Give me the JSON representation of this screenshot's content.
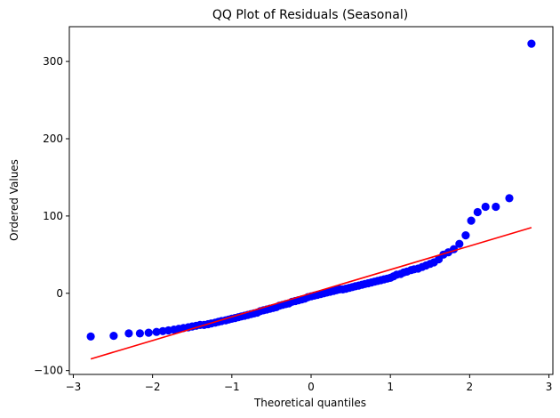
{
  "chart_data": {
    "type": "scatter",
    "title": "QQ Plot of Residuals (Seasonal)",
    "xlabel": "Theoretical quantiles",
    "ylabel": "Ordered Values",
    "xlim": [
      -3.05,
      3.05
    ],
    "ylim": [
      -105,
      345
    ],
    "xticks": [
      -3,
      -2,
      -1,
      0,
      1,
      2,
      3
    ],
    "yticks": [
      -100,
      0,
      100,
      200,
      300
    ],
    "xtick_labels": [
      "−3",
      "−2",
      "−1",
      "0",
      "1",
      "2",
      "3"
    ],
    "ytick_labels": [
      "−100",
      "0",
      "100",
      "200",
      "300"
    ],
    "grid": false,
    "legend": "none",
    "series": [
      {
        "kind": "scatter",
        "color": "#0000ff",
        "points": [
          [
            -2.78,
            -56
          ],
          [
            -2.49,
            -55
          ],
          [
            -2.3,
            -52
          ],
          [
            -2.16,
            -52
          ],
          [
            -2.05,
            -51
          ],
          [
            -1.95,
            -50
          ],
          [
            -1.87,
            -49
          ],
          [
            -1.8,
            -48
          ],
          [
            -1.73,
            -47
          ],
          [
            -1.67,
            -46
          ],
          [
            -1.61,
            -45
          ],
          [
            -1.55,
            -44
          ],
          [
            -1.5,
            -43
          ],
          [
            -1.45,
            -42
          ],
          [
            -1.4,
            -41
          ],
          [
            -1.35,
            -41
          ],
          [
            -1.3,
            -40
          ],
          [
            -1.26,
            -39
          ],
          [
            -1.21,
            -38
          ],
          [
            -1.17,
            -37
          ],
          [
            -1.13,
            -36
          ],
          [
            -1.08,
            -35
          ],
          [
            -1.04,
            -34
          ],
          [
            -1.0,
            -33
          ],
          [
            -0.96,
            -32
          ],
          [
            -0.92,
            -31
          ],
          [
            -0.88,
            -30
          ],
          [
            -0.84,
            -29
          ],
          [
            -0.8,
            -28
          ],
          [
            -0.76,
            -27
          ],
          [
            -0.72,
            -26
          ],
          [
            -0.68,
            -25
          ],
          [
            -0.64,
            -23
          ],
          [
            -0.6,
            -22
          ],
          [
            -0.56,
            -21
          ],
          [
            -0.52,
            -20
          ],
          [
            -0.48,
            -19
          ],
          [
            -0.44,
            -18
          ],
          [
            -0.4,
            -16
          ],
          [
            -0.36,
            -15
          ],
          [
            -0.32,
            -14
          ],
          [
            -0.28,
            -13
          ],
          [
            -0.24,
            -11
          ],
          [
            -0.2,
            -10
          ],
          [
            -0.16,
            -9
          ],
          [
            -0.12,
            -8
          ],
          [
            -0.08,
            -7
          ],
          [
            -0.04,
            -5
          ],
          [
            0.0,
            -4
          ],
          [
            0.04,
            -3
          ],
          [
            0.08,
            -2
          ],
          [
            0.12,
            -1
          ],
          [
            0.16,
            0
          ],
          [
            0.2,
            1
          ],
          [
            0.24,
            2
          ],
          [
            0.28,
            3
          ],
          [
            0.32,
            4
          ],
          [
            0.36,
            5
          ],
          [
            0.4,
            5
          ],
          [
            0.44,
            6
          ],
          [
            0.48,
            7
          ],
          [
            0.52,
            8
          ],
          [
            0.56,
            9
          ],
          [
            0.6,
            10
          ],
          [
            0.64,
            11
          ],
          [
            0.68,
            12
          ],
          [
            0.72,
            13
          ],
          [
            0.76,
            14
          ],
          [
            0.8,
            15
          ],
          [
            0.84,
            16
          ],
          [
            0.88,
            17
          ],
          [
            0.92,
            18
          ],
          [
            0.96,
            19
          ],
          [
            1.0,
            20
          ],
          [
            1.04,
            22
          ],
          [
            1.08,
            24
          ],
          [
            1.13,
            25
          ],
          [
            1.17,
            27
          ],
          [
            1.21,
            28
          ],
          [
            1.26,
            30
          ],
          [
            1.3,
            31
          ],
          [
            1.35,
            32
          ],
          [
            1.4,
            34
          ],
          [
            1.45,
            36
          ],
          [
            1.5,
            38
          ],
          [
            1.55,
            40
          ],
          [
            1.61,
            44
          ],
          [
            1.67,
            50
          ],
          [
            1.73,
            53
          ],
          [
            1.8,
            57
          ],
          [
            1.87,
            64
          ],
          [
            1.95,
            75
          ],
          [
            2.02,
            94
          ],
          [
            2.1,
            105
          ],
          [
            2.2,
            112
          ],
          [
            2.33,
            112
          ],
          [
            2.5,
            123
          ],
          [
            2.78,
            323
          ]
        ]
      },
      {
        "kind": "line",
        "color": "#ff0000",
        "points": [
          [
            -2.78,
            -85
          ],
          [
            2.78,
            85
          ]
        ]
      }
    ]
  }
}
